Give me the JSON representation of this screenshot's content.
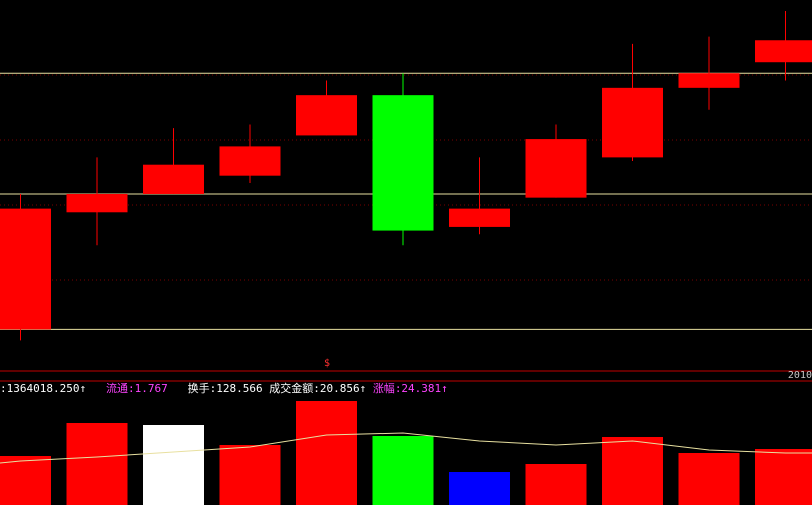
{
  "colors": {
    "background": "#000000",
    "up": "#ff0000",
    "down": "#00ff00",
    "volume_white": "#ffffff",
    "volume_blue": "#0000ff",
    "ma_line": "#e8e0a0",
    "grid_dotted": "#7a0000",
    "ref_line": "#e8e0a0",
    "separator": "#c00000",
    "label_yellow": "#ffff66",
    "label_white": "#ffffff",
    "label_magenta": "#ff44ff"
  },
  "info_bar": {
    "volume_value": ":1364018.250↑",
    "circulation_label": "流通",
    "circulation_value": ":1.767",
    "turnover_label": "换手",
    "turnover_value": ":128.566",
    "amount_label": "成交金额",
    "amount_value": ":20.856↑",
    "change_label": "涨幅",
    "change_value": ":24.381↑"
  },
  "date_label": "2010",
  "marker_label": "$",
  "chart_data": [
    {
      "type": "candlestick",
      "ylim": [
        0,
        100
      ],
      "reference_lines": [
        80,
        47,
        10
      ],
      "grid": "dotted",
      "candles": [
        {
          "open": 10,
          "close": 43,
          "high": 47,
          "low": 7,
          "color": "up"
        },
        {
          "open": 42,
          "close": 47,
          "high": 57,
          "low": 33,
          "color": "up"
        },
        {
          "open": 47,
          "close": 55,
          "high": 65,
          "low": 47,
          "color": "up"
        },
        {
          "open": 52,
          "close": 60,
          "high": 66,
          "low": 50,
          "color": "up"
        },
        {
          "open": 63,
          "close": 74,
          "high": 78,
          "low": 63,
          "color": "up"
        },
        {
          "open": 74,
          "close": 37,
          "high": 80,
          "low": 33,
          "color": "down"
        },
        {
          "open": 38,
          "close": 43,
          "high": 57,
          "low": 36,
          "color": "up"
        },
        {
          "open": 46,
          "close": 62,
          "high": 66,
          "low": 46,
          "color": "up"
        },
        {
          "open": 57,
          "close": 76,
          "high": 88,
          "low": 56,
          "color": "up"
        },
        {
          "open": 76,
          "close": 80,
          "high": 90,
          "low": 70,
          "color": "up"
        },
        {
          "open": 83,
          "close": 89,
          "high": 97,
          "low": 78,
          "color": "up"
        }
      ]
    },
    {
      "type": "bar",
      "ylim": [
        0,
        105
      ],
      "values": [
        47,
        80,
        78,
        58,
        102,
        67,
        31,
        39,
        66,
        50,
        54
      ],
      "bar_colors": [
        "red",
        "red",
        "white",
        "red",
        "red",
        "green",
        "blue",
        "red",
        "red",
        "red",
        "red"
      ],
      "ma_line": [
        42,
        46,
        51,
        56,
        68,
        70,
        62,
        58,
        62,
        53,
        50
      ]
    }
  ]
}
